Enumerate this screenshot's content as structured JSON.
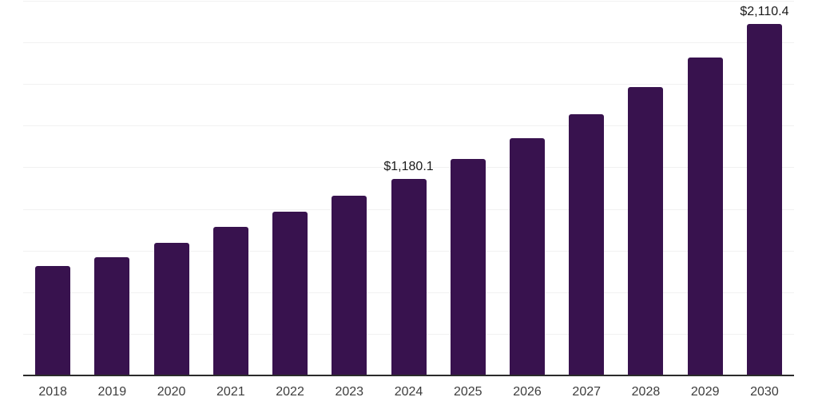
{
  "chart_data": {
    "type": "bar",
    "title": "",
    "xlabel": "",
    "ylabel": "",
    "categories": [
      "2018",
      "2019",
      "2020",
      "2021",
      "2022",
      "2023",
      "2024",
      "2025",
      "2026",
      "2027",
      "2028",
      "2029",
      "2030"
    ],
    "values": [
      655,
      711,
      796,
      891,
      983,
      1080,
      1180.1,
      1299,
      1426,
      1567,
      1730,
      1911,
      2110.4
    ],
    "data_labels": [
      "",
      "",
      "",
      "",
      "",
      "",
      "$1,180.1",
      "",
      "",
      "",
      "",
      "",
      "$2,110.4"
    ],
    "ylim": [
      0,
      2250
    ],
    "gridline_step": 250,
    "grid": "horizontal",
    "legend_position": "none"
  },
  "colors": {
    "bar": "#38124e",
    "gridline": "#f1f1f1",
    "axis_line": "#2b2b2b",
    "tick_label": "#3d3d3d",
    "data_label": "#1a1a1a",
    "background": "#ffffff"
  }
}
